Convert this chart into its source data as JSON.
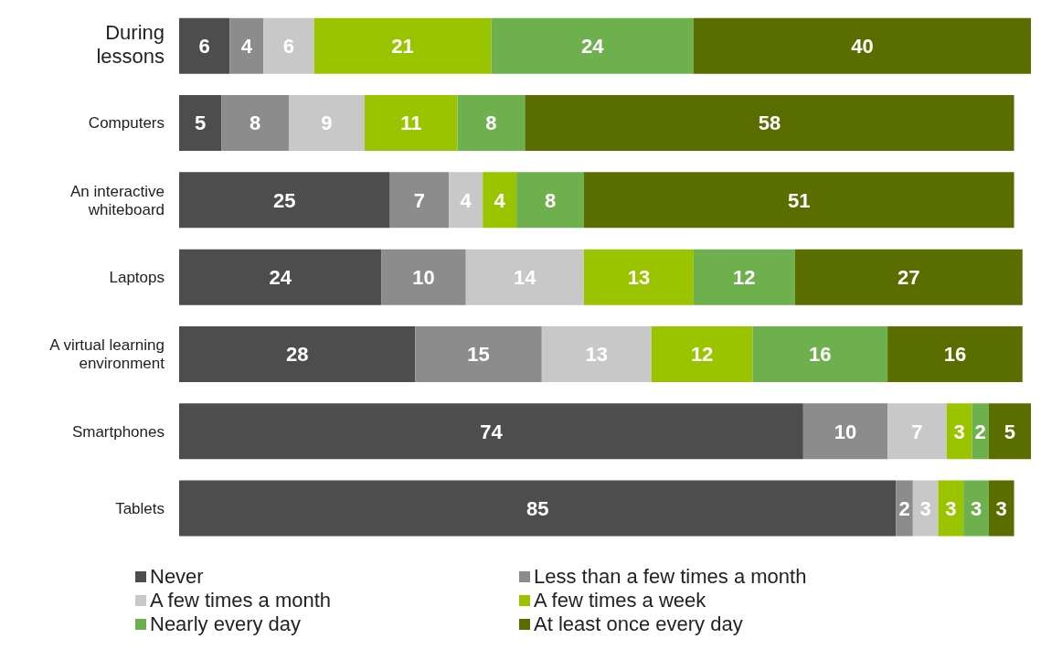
{
  "chart_data": {
    "type": "bar",
    "orientation": "horizontal",
    "stacked": true,
    "data_labels": true,
    "legend": "bottom",
    "categories": [
      "During lessons",
      "Computers",
      "An interactive whiteboard",
      "Laptops",
      "A virtual learning environment",
      "Smartphones",
      "Tablets"
    ],
    "series": [
      {
        "name": "Never",
        "color": "#4d4d4d",
        "values": [
          6,
          5,
          25,
          24,
          28,
          74,
          85
        ]
      },
      {
        "name": "Less than a few times a month",
        "color": "#8c8c8c",
        "values": [
          4,
          8,
          7,
          10,
          15,
          10,
          2
        ]
      },
      {
        "name": "A few times a month",
        "color": "#c8c8c8",
        "values": [
          6,
          9,
          4,
          14,
          13,
          7,
          3
        ]
      },
      {
        "name": "A few times a week",
        "color": "#9bc400",
        "values": [
          21,
          11,
          4,
          13,
          12,
          3,
          3
        ]
      },
      {
        "name": "Nearly every day",
        "color": "#6fb04e",
        "values": [
          24,
          8,
          8,
          12,
          16,
          2,
          3
        ]
      },
      {
        "name": "At least once every day",
        "color": "#5a6e00",
        "values": [
          40,
          58,
          51,
          27,
          16,
          5,
          3
        ]
      }
    ]
  }
}
